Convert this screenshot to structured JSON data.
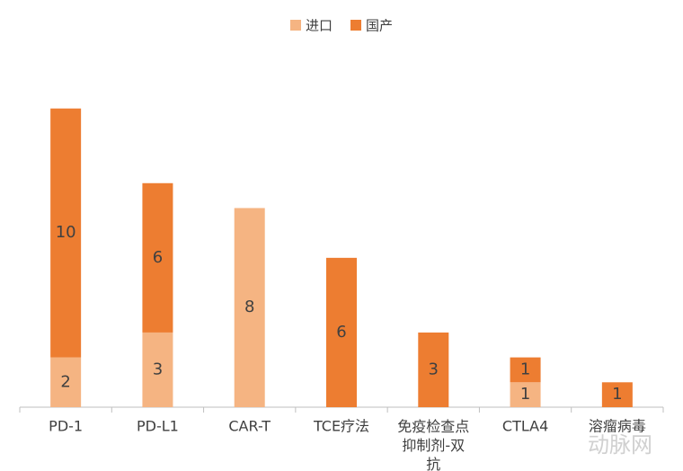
{
  "chart_data": {
    "type": "stacked_bar",
    "categories": [
      "PD-1",
      "PD-L1",
      "CAR-T",
      "TCE疗法",
      "免疫检查点抑制剂-双抗",
      "CTLA4",
      "溶瘤病毒"
    ],
    "series": [
      {
        "name": "进口",
        "color": "#f5b482",
        "values": [
          2,
          3,
          8,
          null,
          null,
          1,
          null
        ]
      },
      {
        "name": "国产",
        "color": "#ed7d31",
        "values": [
          10,
          6,
          null,
          6,
          3,
          1,
          1
        ]
      }
    ],
    "ylim": [
      0,
      13
    ],
    "legend": "top"
  },
  "watermark": "动脉网"
}
